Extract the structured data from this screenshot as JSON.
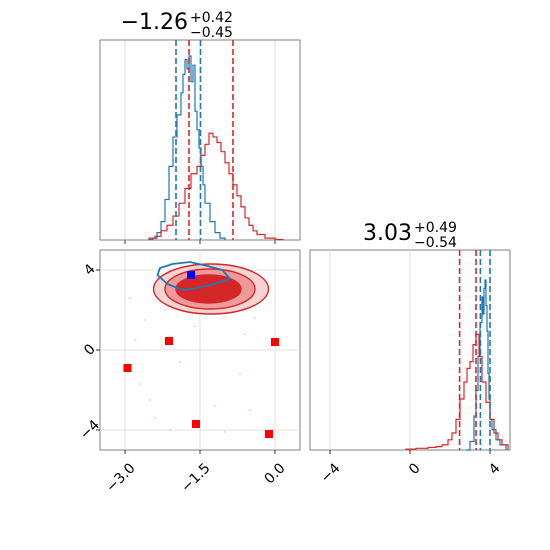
{
  "chart_data": [
    {
      "panel": "param1-marginal",
      "type": "step-histogram",
      "title": {
        "value": "−1.26",
        "upper": "+0.42",
        "lower": "−0.45"
      },
      "xlim": [
        -3.5,
        0.5
      ],
      "series": [
        {
          "color": "#1f77b4",
          "peak": -1.66,
          "spread": 0.2,
          "bins": [
            [
              -2.52,
              0.002
            ],
            [
              -2.44,
              0.01
            ],
            [
              -2.36,
              0.04
            ],
            [
              -2.28,
              0.1
            ],
            [
              -2.2,
              0.22
            ],
            [
              -2.12,
              0.4
            ],
            [
              -2.04,
              0.56
            ],
            [
              -1.96,
              0.68
            ],
            [
              -1.88,
              0.8
            ],
            [
              -1.84,
              0.9
            ],
            [
              -1.8,
              0.98
            ],
            [
              -1.76,
              0.93
            ],
            [
              -1.72,
              1.0
            ],
            [
              -1.68,
              0.86
            ],
            [
              -1.64,
              0.95
            ],
            [
              -1.6,
              0.7
            ],
            [
              -1.56,
              0.6
            ],
            [
              -1.52,
              0.5
            ],
            [
              -1.48,
              0.4
            ],
            [
              -1.44,
              0.3
            ],
            [
              -1.4,
              0.2
            ],
            [
              -1.3,
              0.1
            ],
            [
              -1.2,
              0.04
            ],
            [
              -1.1,
              0.01
            ],
            [
              -1.0,
              0.0
            ]
          ]
        },
        {
          "color": "#d62728",
          "bins": [
            [
              -2.52,
              0.01
            ],
            [
              -2.4,
              0.02
            ],
            [
              -2.28,
              0.05
            ],
            [
              -2.16,
              0.08
            ],
            [
              -2.04,
              0.13
            ],
            [
              -1.92,
              0.2
            ],
            [
              -1.8,
              0.28
            ],
            [
              -1.68,
              0.36
            ],
            [
              -1.56,
              0.4
            ],
            [
              -1.48,
              0.46
            ],
            [
              -1.4,
              0.52
            ],
            [
              -1.32,
              0.58
            ],
            [
              -1.24,
              0.56
            ],
            [
              -1.16,
              0.53
            ],
            [
              -1.08,
              0.48
            ],
            [
              -1.0,
              0.42
            ],
            [
              -0.92,
              0.36
            ],
            [
              -0.84,
              0.3
            ],
            [
              -0.76,
              0.24
            ],
            [
              -0.68,
              0.18
            ],
            [
              -0.6,
              0.12
            ],
            [
              -0.52,
              0.08
            ],
            [
              -0.44,
              0.05
            ],
            [
              -0.36,
              0.03
            ],
            [
              -0.2,
              0.01
            ],
            [
              0.0,
              0.003
            ],
            [
              0.16,
              0.0
            ]
          ]
        }
      ],
      "vlines": [
        {
          "x": -1.98,
          "color": "#1f77b4"
        },
        {
          "x": -1.72,
          "color": "#d62728"
        },
        {
          "x": -1.49,
          "color": "#1f77b4"
        },
        {
          "x": -0.84,
          "color": "#d62728"
        }
      ]
    },
    {
      "panel": "param2-marginal",
      "type": "step-histogram",
      "title": {
        "value": "3.03",
        "upper": "+0.49",
        "lower": "−0.54"
      },
      "xlabels": [
        "−4",
        "0",
        "4"
      ],
      "xticks": [
        -4,
        0,
        4
      ],
      "xlim": [
        -5,
        5
      ],
      "series": [
        {
          "color": "#1f77b4",
          "bins": [
            [
              2.8,
              0.0
            ],
            [
              3.0,
              0.05
            ],
            [
              3.2,
              0.2
            ],
            [
              3.3,
              0.35
            ],
            [
              3.4,
              0.55
            ],
            [
              3.5,
              0.75
            ],
            [
              3.6,
              0.9
            ],
            [
              3.65,
              0.8
            ],
            [
              3.7,
              0.95
            ],
            [
              3.75,
              1.0
            ],
            [
              3.8,
              0.85
            ],
            [
              3.85,
              0.7
            ],
            [
              3.9,
              0.45
            ],
            [
              3.95,
              0.3
            ],
            [
              4.0,
              0.18
            ],
            [
              4.1,
              0.12
            ],
            [
              4.3,
              0.06
            ],
            [
              4.5,
              0.03
            ],
            [
              4.8,
              0.0
            ]
          ]
        },
        {
          "color": "#d62728",
          "bins": [
            [
              -0.2,
              0.005
            ],
            [
              0.3,
              0.01
            ],
            [
              0.9,
              0.015
            ],
            [
              1.3,
              0.02
            ],
            [
              1.6,
              0.03
            ],
            [
              1.9,
              0.06
            ],
            [
              2.1,
              0.1
            ],
            [
              2.3,
              0.18
            ],
            [
              2.5,
              0.3
            ],
            [
              2.7,
              0.4
            ],
            [
              2.85,
              0.48
            ],
            [
              3.0,
              0.52
            ],
            [
              3.15,
              0.62
            ],
            [
              3.3,
              0.68
            ],
            [
              3.45,
              0.55
            ],
            [
              3.6,
              0.4
            ],
            [
              3.8,
              0.28
            ],
            [
              4.0,
              0.18
            ],
            [
              4.2,
              0.1
            ],
            [
              4.4,
              0.06
            ],
            [
              4.6,
              0.03
            ],
            [
              4.9,
              0.0
            ]
          ]
        }
      ],
      "vlines": [
        {
          "x": 2.48,
          "color": "#d62728"
        },
        {
          "x": 3.3,
          "color": "#d62728"
        },
        {
          "x": 3.52,
          "color": "#1f77b4"
        },
        {
          "x": 4.0,
          "color": "#1f77b4"
        }
      ]
    },
    {
      "panel": "joint",
      "type": "contour-scatter",
      "xlim": [
        -3.5,
        0.5
      ],
      "ylim": [
        -5,
        5
      ],
      "xticks": [
        -3.0,
        -1.5,
        0.0
      ],
      "xlabels": [
        "−3.0",
        "−1.5",
        "0.0"
      ],
      "yticks": [
        -4,
        0,
        4
      ],
      "ylabels": [
        "−4",
        "0",
        "4"
      ],
      "red_contours": [
        {
          "cx": -1.28,
          "cy": 3.05,
          "rx": 1.15,
          "ry": 1.25,
          "fill": "#f7d4d4",
          "stroke": "#d62728"
        },
        {
          "cx": -1.3,
          "cy": 3.05,
          "rx": 0.9,
          "ry": 1.0,
          "fill": "#ee9a9a",
          "stroke": "#d62728"
        },
        {
          "cx": -1.33,
          "cy": 3.05,
          "rx": 0.65,
          "ry": 0.7,
          "fill": "#d62728",
          "stroke": "#d62728"
        }
      ],
      "blue_contour": [
        [
          -2.3,
          4.1
        ],
        [
          -2.05,
          4.3
        ],
        [
          -1.7,
          4.4
        ],
        [
          -1.35,
          4.2
        ],
        [
          -1.05,
          4.0
        ],
        [
          -0.9,
          3.55
        ],
        [
          -1.15,
          3.35
        ],
        [
          -1.55,
          3.1
        ],
        [
          -1.85,
          3.0
        ],
        [
          -2.15,
          3.3
        ],
        [
          -2.35,
          3.75
        ],
        [
          -2.3,
          4.1
        ]
      ],
      "scatter_points": [
        {
          "x": -1.68,
          "y": 3.75,
          "color": "#0000ff"
        },
        {
          "x": -2.12,
          "y": 0.45,
          "color": "#ff0000"
        },
        {
          "x": -2.95,
          "y": -0.9,
          "color": "#ff0000"
        },
        {
          "x": 0.0,
          "y": 0.4,
          "color": "#ff0000"
        },
        {
          "x": -1.58,
          "y": -3.7,
          "color": "#ff0000"
        },
        {
          "x": -0.12,
          "y": -4.2,
          "color": "#ff0000"
        }
      ],
      "faint_points": [
        [
          -2.6,
          1.5
        ],
        [
          -2.2,
          2.0
        ],
        [
          -0.4,
          1.6
        ],
        [
          -0.6,
          0.8
        ],
        [
          -2.8,
          0.5
        ],
        [
          -1.9,
          -0.6
        ],
        [
          -0.7,
          -1.2
        ],
        [
          -2.5,
          -2.5
        ],
        [
          -1.2,
          -2.8
        ],
        [
          -2.1,
          -4.0
        ],
        [
          -0.9,
          2.4
        ],
        [
          -2.9,
          2.6
        ],
        [
          -0.3,
          3.0
        ],
        [
          -1.6,
          1.2
        ],
        [
          -2.4,
          -3.4
        ],
        [
          -0.5,
          -3.0
        ],
        [
          -1.0,
          -4.1
        ],
        [
          -2.7,
          -1.7
        ]
      ]
    }
  ]
}
